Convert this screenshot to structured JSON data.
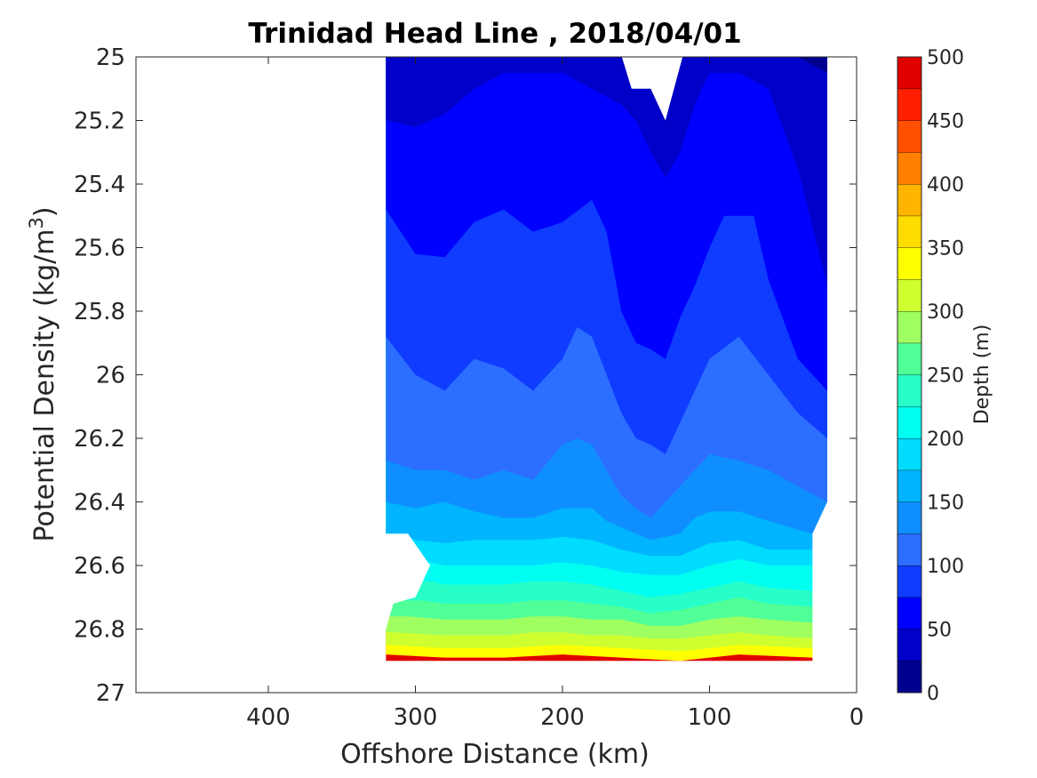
{
  "chart_data": {
    "type": "contour",
    "title": "Trinidad Head Line , 2018/04/01",
    "xlabel": "Offshore Distance (km)",
    "ylabel": "Potential Density (kg/m³)",
    "xlim": [
      490,
      0
    ],
    "ylim": [
      25,
      27
    ],
    "y_reversed": true,
    "x_ticks": [
      400,
      300,
      200,
      100,
      0
    ],
    "y_ticks": [
      25,
      25.2,
      25.4,
      25.6,
      25.8,
      26,
      26.2,
      26.4,
      26.6,
      26.8,
      27
    ],
    "y_tick_labels": [
      "25",
      "25.2",
      "25.4",
      "25.6",
      "25.8",
      "26",
      "26.2",
      "26.4",
      "26.6",
      "26.8",
      "27"
    ],
    "colorbar": {
      "label": "Depth (m)",
      "range": [
        0,
        500
      ],
      "ticks": [
        0,
        50,
        100,
        150,
        200,
        250,
        300,
        350,
        400,
        450,
        500
      ],
      "levels": [
        0,
        25,
        50,
        75,
        100,
        125,
        150,
        175,
        200,
        225,
        250,
        275,
        300,
        325,
        350,
        375,
        400,
        425,
        450,
        475,
        500
      ],
      "colors": [
        "#00008f",
        "#0000c8",
        "#0000ff",
        "#0f3cff",
        "#2c6eff",
        "#0f8fff",
        "#00b4ff",
        "#00dcff",
        "#00fff0",
        "#28ffc8",
        "#50ff98",
        "#a0ff60",
        "#d0ff30",
        "#ffff00",
        "#ffdc00",
        "#ffb400",
        "#ff8000",
        "#ff5000",
        "#ff2000",
        "#e00000"
      ]
    },
    "data_extent": {
      "station_distance_km": [
        320,
        20
      ],
      "density_range": [
        25,
        26.9
      ]
    },
    "contours": [
      {
        "level": 25,
        "points": [
          [
            320,
            25.0
          ],
          [
            300,
            25.0
          ],
          [
            250,
            25.0
          ],
          [
            200,
            25.0
          ],
          [
            170,
            25.0
          ],
          [
            160,
            25.0
          ],
          [
            150,
            25.0
          ],
          [
            140,
            25.05
          ],
          [
            130,
            25.1
          ],
          [
            120,
            25.0
          ],
          [
            110,
            25.0
          ],
          [
            100,
            25.0
          ],
          [
            80,
            25.0
          ],
          [
            60,
            25.0
          ],
          [
            40,
            25.0
          ],
          [
            20,
            25.05
          ]
        ]
      },
      {
        "level": 50,
        "points": [
          [
            320,
            25.2
          ],
          [
            300,
            25.22
          ],
          [
            280,
            25.18
          ],
          [
            260,
            25.1
          ],
          [
            240,
            25.05
          ],
          [
            220,
            25.05
          ],
          [
            200,
            25.05
          ],
          [
            180,
            25.1
          ],
          [
            160,
            25.15
          ],
          [
            150,
            25.2
          ],
          [
            140,
            25.3
          ],
          [
            130,
            25.38
          ],
          [
            120,
            25.3
          ],
          [
            110,
            25.15
          ],
          [
            100,
            25.05
          ],
          [
            80,
            25.05
          ],
          [
            60,
            25.1
          ],
          [
            40,
            25.35
          ],
          [
            20,
            25.72
          ]
        ]
      },
      {
        "level": 75,
        "points": [
          [
            320,
            25.48
          ],
          [
            300,
            25.62
          ],
          [
            280,
            25.63
          ],
          [
            260,
            25.52
          ],
          [
            240,
            25.48
          ],
          [
            220,
            25.55
          ],
          [
            200,
            25.52
          ],
          [
            180,
            25.45
          ],
          [
            170,
            25.55
          ],
          [
            160,
            25.8
          ],
          [
            150,
            25.9
          ],
          [
            140,
            25.92
          ],
          [
            130,
            25.95
          ],
          [
            120,
            25.82
          ],
          [
            110,
            25.72
          ],
          [
            100,
            25.6
          ],
          [
            90,
            25.5
          ],
          [
            70,
            25.5
          ],
          [
            60,
            25.7
          ],
          [
            40,
            25.95
          ],
          [
            20,
            26.05
          ]
        ]
      },
      {
        "level": 100,
        "points": [
          [
            320,
            25.88
          ],
          [
            300,
            26.0
          ],
          [
            280,
            26.05
          ],
          [
            260,
            25.95
          ],
          [
            240,
            25.98
          ],
          [
            220,
            26.05
          ],
          [
            200,
            25.95
          ],
          [
            190,
            25.85
          ],
          [
            180,
            25.88
          ],
          [
            170,
            26.0
          ],
          [
            160,
            26.12
          ],
          [
            150,
            26.2
          ],
          [
            140,
            26.22
          ],
          [
            130,
            26.25
          ],
          [
            120,
            26.15
          ],
          [
            110,
            26.05
          ],
          [
            100,
            25.95
          ],
          [
            80,
            25.88
          ],
          [
            60,
            26.0
          ],
          [
            40,
            26.12
          ],
          [
            20,
            26.2
          ]
        ]
      },
      {
        "level": 125,
        "points": [
          [
            320,
            26.27
          ],
          [
            300,
            26.3
          ],
          [
            280,
            26.3
          ],
          [
            260,
            26.33
          ],
          [
            240,
            26.3
          ],
          [
            220,
            26.33
          ],
          [
            200,
            26.22
          ],
          [
            190,
            26.2
          ],
          [
            180,
            26.22
          ],
          [
            170,
            26.3
          ],
          [
            160,
            26.38
          ],
          [
            150,
            26.42
          ],
          [
            140,
            26.45
          ],
          [
            130,
            26.4
          ],
          [
            120,
            26.35
          ],
          [
            110,
            26.3
          ],
          [
            100,
            26.25
          ],
          [
            80,
            26.27
          ],
          [
            60,
            26.3
          ],
          [
            40,
            26.35
          ],
          [
            20,
            26.4
          ]
        ]
      },
      {
        "level": 150,
        "points": [
          [
            320,
            26.4
          ],
          [
            300,
            26.42
          ],
          [
            280,
            26.4
          ],
          [
            260,
            26.43
          ],
          [
            240,
            26.45
          ],
          [
            220,
            26.45
          ],
          [
            200,
            26.42
          ],
          [
            180,
            26.42
          ],
          [
            170,
            26.46
          ],
          [
            160,
            26.48
          ],
          [
            140,
            26.52
          ],
          [
            120,
            26.5
          ],
          [
            110,
            26.45
          ],
          [
            100,
            26.43
          ],
          [
            80,
            26.43
          ],
          [
            60,
            26.46
          ],
          [
            30,
            26.5
          ]
        ]
      },
      {
        "level": 175,
        "points": [
          [
            310,
            26.5
          ],
          [
            300,
            26.52
          ],
          [
            280,
            26.53
          ],
          [
            260,
            26.52
          ],
          [
            240,
            26.52
          ],
          [
            220,
            26.52
          ],
          [
            200,
            26.51
          ],
          [
            180,
            26.52
          ],
          [
            160,
            26.55
          ],
          [
            140,
            26.57
          ],
          [
            120,
            26.57
          ],
          [
            100,
            26.53
          ],
          [
            80,
            26.52
          ],
          [
            60,
            26.55
          ],
          [
            30,
            26.55
          ]
        ]
      },
      {
        "level": 200,
        "points": [
          [
            300,
            26.58
          ],
          [
            280,
            26.6
          ],
          [
            260,
            26.6
          ],
          [
            240,
            26.6
          ],
          [
            220,
            26.6
          ],
          [
            200,
            26.59
          ],
          [
            180,
            26.6
          ],
          [
            160,
            26.62
          ],
          [
            140,
            26.63
          ],
          [
            120,
            26.63
          ],
          [
            100,
            26.6
          ],
          [
            80,
            26.58
          ],
          [
            60,
            26.6
          ],
          [
            30,
            26.6
          ]
        ]
      },
      {
        "level": 225,
        "points": [
          [
            290,
            26.65
          ],
          [
            280,
            26.66
          ],
          [
            260,
            26.66
          ],
          [
            240,
            26.66
          ],
          [
            220,
            26.65
          ],
          [
            200,
            26.65
          ],
          [
            180,
            26.66
          ],
          [
            160,
            26.68
          ],
          [
            140,
            26.7
          ],
          [
            120,
            26.69
          ],
          [
            100,
            26.67
          ],
          [
            80,
            26.65
          ],
          [
            60,
            26.67
          ],
          [
            30,
            26.68
          ]
        ]
      },
      {
        "level": 250,
        "points": [
          [
            295,
            26.71
          ],
          [
            280,
            26.72
          ],
          [
            260,
            26.72
          ],
          [
            240,
            26.72
          ],
          [
            220,
            26.71
          ],
          [
            200,
            26.71
          ],
          [
            180,
            26.72
          ],
          [
            160,
            26.73
          ],
          [
            140,
            26.75
          ],
          [
            120,
            26.74
          ],
          [
            100,
            26.72
          ],
          [
            80,
            26.7
          ],
          [
            60,
            26.72
          ],
          [
            30,
            26.73
          ]
        ]
      },
      {
        "level": 275,
        "points": [
          [
            305,
            26.76
          ],
          [
            280,
            26.77
          ],
          [
            260,
            26.77
          ],
          [
            240,
            26.77
          ],
          [
            220,
            26.76
          ],
          [
            200,
            26.76
          ],
          [
            180,
            26.77
          ],
          [
            160,
            26.77
          ],
          [
            140,
            26.79
          ],
          [
            120,
            26.79
          ],
          [
            100,
            26.77
          ],
          [
            80,
            26.76
          ],
          [
            60,
            26.77
          ],
          [
            30,
            26.78
          ]
        ]
      },
      {
        "level": 300,
        "points": [
          [
            315,
            26.81
          ],
          [
            280,
            26.82
          ],
          [
            260,
            26.82
          ],
          [
            240,
            26.82
          ],
          [
            220,
            26.81
          ],
          [
            200,
            26.81
          ],
          [
            180,
            26.82
          ],
          [
            160,
            26.82
          ],
          [
            140,
            26.83
          ],
          [
            120,
            26.83
          ],
          [
            100,
            26.82
          ],
          [
            80,
            26.81
          ],
          [
            60,
            26.82
          ],
          [
            30,
            26.83
          ]
        ]
      },
      {
        "level": 325,
        "points": [
          [
            320,
            26.85
          ],
          [
            280,
            26.86
          ],
          [
            240,
            26.86
          ],
          [
            200,
            26.85
          ],
          [
            160,
            26.86
          ],
          [
            120,
            26.87
          ],
          [
            80,
            26.85
          ],
          [
            30,
            26.86
          ]
        ]
      },
      {
        "level": 350,
        "points": [
          [
            320,
            26.88
          ],
          [
            280,
            26.89
          ],
          [
            240,
            26.89
          ],
          [
            200,
            26.88
          ],
          [
            160,
            26.89
          ],
          [
            120,
            26.9
          ],
          [
            80,
            26.88
          ],
          [
            30,
            26.89
          ]
        ]
      }
    ]
  }
}
